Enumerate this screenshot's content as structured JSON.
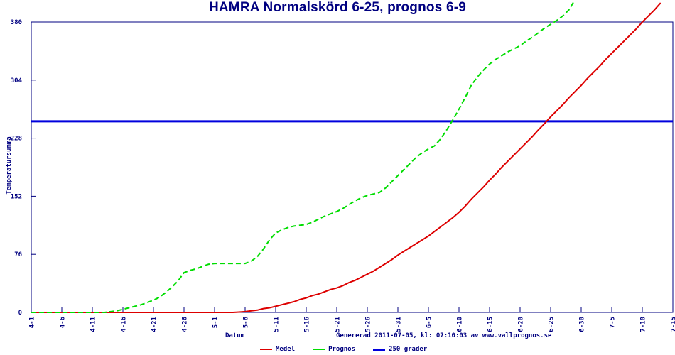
{
  "title": "HAMRA Normalskörd 6-25, prognos 6-9",
  "footer": {
    "generated": "Genererad 2011-07-05, kl: 07:10:03 av www.vallprognos.se"
  },
  "colors": {
    "title": "#000080",
    "axis": "#000080",
    "medel": "#dd0000",
    "prognos": "#00dd00",
    "grader_250": "#0000dd",
    "background": "#ffffff"
  },
  "chart_data": {
    "type": "line",
    "title": "HAMRA Normalskörd 6-25, prognos 6-9",
    "xlabel": "Datum",
    "ylabel": "Temperatursumma",
    "ylim": [
      0,
      380
    ],
    "grid": false,
    "legend_position": "bottom",
    "y_ticks": [
      0,
      76,
      152,
      228,
      304,
      380
    ],
    "x_ticks": [
      {
        "day": 0,
        "label": "4-1"
      },
      {
        "day": 5,
        "label": "4-6"
      },
      {
        "day": 10,
        "label": "4-11"
      },
      {
        "day": 15,
        "label": "4-16"
      },
      {
        "day": 20,
        "label": "4-21"
      },
      {
        "day": 25,
        "label": "4-26"
      },
      {
        "day": 30,
        "label": "5-1"
      },
      {
        "day": 35,
        "label": "5-6"
      },
      {
        "day": 40,
        "label": "5-11"
      },
      {
        "day": 45,
        "label": "5-16"
      },
      {
        "day": 50,
        "label": "5-21"
      },
      {
        "day": 55,
        "label": "5-26"
      },
      {
        "day": 60,
        "label": "5-31"
      },
      {
        "day": 65,
        "label": "6-5"
      },
      {
        "day": 70,
        "label": "6-10"
      },
      {
        "day": 75,
        "label": "6-15"
      },
      {
        "day": 80,
        "label": "6-20"
      },
      {
        "day": 85,
        "label": "6-25"
      },
      {
        "day": 90,
        "label": "6-30"
      },
      {
        "day": 95,
        "label": "7-5"
      },
      {
        "day": 100,
        "label": "7-10"
      },
      {
        "day": 105,
        "label": "7-15"
      }
    ],
    "series": [
      {
        "name": "250 grader",
        "color": "#0000dd",
        "style": "solid",
        "width": 3,
        "points": [
          [
            0,
            250
          ],
          [
            105,
            250
          ]
        ]
      },
      {
        "name": "Medel",
        "color": "#dd0000",
        "style": "solid",
        "width": 2,
        "points": [
          [
            0,
            0
          ],
          [
            10,
            0
          ],
          [
            20,
            0
          ],
          [
            25,
            0
          ],
          [
            30,
            0
          ],
          [
            33,
            0
          ],
          [
            34,
            0.5
          ],
          [
            35,
            1
          ],
          [
            36,
            2
          ],
          [
            37,
            3
          ],
          [
            38,
            5
          ],
          [
            39,
            6
          ],
          [
            40,
            8
          ],
          [
            41,
            10
          ],
          [
            42,
            12
          ],
          [
            43,
            14
          ],
          [
            44,
            17
          ],
          [
            45,
            19
          ],
          [
            46,
            22
          ],
          [
            47,
            24
          ],
          [
            48,
            27
          ],
          [
            49,
            30
          ],
          [
            50,
            32
          ],
          [
            51,
            35
          ],
          [
            52,
            39
          ],
          [
            53,
            42
          ],
          [
            54,
            46
          ],
          [
            55,
            50
          ],
          [
            56,
            54
          ],
          [
            57,
            59
          ],
          [
            58,
            64
          ],
          [
            59,
            69
          ],
          [
            60,
            75
          ],
          [
            61,
            80
          ],
          [
            62,
            85
          ],
          [
            63,
            90
          ],
          [
            64,
            95
          ],
          [
            65,
            100
          ],
          [
            66,
            106
          ],
          [
            67,
            112
          ],
          [
            68,
            118
          ],
          [
            69,
            124
          ],
          [
            70,
            131
          ],
          [
            71,
            139
          ],
          [
            72,
            148
          ],
          [
            73,
            156
          ],
          [
            74,
            164
          ],
          [
            75,
            173
          ],
          [
            76,
            181
          ],
          [
            77,
            190
          ],
          [
            78,
            198
          ],
          [
            79,
            206
          ],
          [
            80,
            214
          ],
          [
            81,
            222
          ],
          [
            82,
            230
          ],
          [
            83,
            239
          ],
          [
            84,
            247
          ],
          [
            85,
            256
          ],
          [
            86,
            264
          ],
          [
            87,
            272
          ],
          [
            88,
            281
          ],
          [
            89,
            289
          ],
          [
            90,
            297
          ],
          [
            91,
            306
          ],
          [
            92,
            314
          ],
          [
            93,
            322
          ],
          [
            94,
            331
          ],
          [
            95,
            339
          ],
          [
            96,
            347
          ],
          [
            97,
            355
          ],
          [
            98,
            363
          ],
          [
            99,
            371
          ],
          [
            100,
            380
          ],
          [
            101,
            388
          ],
          [
            102,
            396
          ],
          [
            103,
            405
          ]
        ]
      },
      {
        "name": "Prognos",
        "color": "#00dd00",
        "style": "dashed",
        "width": 2,
        "points": [
          [
            0,
            0
          ],
          [
            6,
            0
          ],
          [
            12,
            0
          ],
          [
            14,
            2
          ],
          [
            16,
            6
          ],
          [
            18,
            10
          ],
          [
            20,
            16
          ],
          [
            21,
            20
          ],
          [
            22,
            26
          ],
          [
            23,
            33
          ],
          [
            24,
            41
          ],
          [
            25,
            52
          ],
          [
            26,
            55
          ],
          [
            27,
            57
          ],
          [
            28,
            60
          ],
          [
            29,
            63
          ],
          [
            30,
            64
          ],
          [
            32,
            64
          ],
          [
            34,
            64
          ],
          [
            35,
            64
          ],
          [
            36,
            67
          ],
          [
            37,
            73
          ],
          [
            38,
            83
          ],
          [
            39,
            95
          ],
          [
            40,
            104
          ],
          [
            41,
            108
          ],
          [
            42,
            111
          ],
          [
            43,
            113
          ],
          [
            44,
            114
          ],
          [
            45,
            115
          ],
          [
            46,
            118
          ],
          [
            47,
            122
          ],
          [
            48,
            126
          ],
          [
            49,
            129
          ],
          [
            50,
            132
          ],
          [
            51,
            136
          ],
          [
            52,
            141
          ],
          [
            53,
            146
          ],
          [
            54,
            150
          ],
          [
            55,
            153
          ],
          [
            56,
            155
          ],
          [
            57,
            157
          ],
          [
            58,
            163
          ],
          [
            59,
            171
          ],
          [
            60,
            179
          ],
          [
            61,
            187
          ],
          [
            62,
            195
          ],
          [
            63,
            203
          ],
          [
            64,
            209
          ],
          [
            65,
            214
          ],
          [
            66,
            218
          ],
          [
            67,
            227
          ],
          [
            68,
            239
          ],
          [
            69,
            252
          ],
          [
            70,
            266
          ],
          [
            71,
            281
          ],
          [
            72,
            297
          ],
          [
            73,
            308
          ],
          [
            74,
            317
          ],
          [
            75,
            325
          ],
          [
            76,
            331
          ],
          [
            77,
            336
          ],
          [
            78,
            341
          ],
          [
            79,
            345
          ],
          [
            80,
            349
          ],
          [
            81,
            355
          ],
          [
            82,
            360
          ],
          [
            83,
            366
          ],
          [
            84,
            372
          ],
          [
            85,
            377
          ],
          [
            86,
            382
          ],
          [
            87,
            388
          ],
          [
            88,
            396
          ],
          [
            88.9,
            408
          ]
        ]
      }
    ],
    "legend_items": [
      {
        "label": "Medel",
        "color": "#dd0000",
        "dashed": false,
        "thickness": 2
      },
      {
        "label": "Prognos",
        "color": "#00dd00",
        "dashed": true,
        "thickness": 2
      },
      {
        "label": "250 grader",
        "color": "#0000dd",
        "dashed": false,
        "thickness": 3
      }
    ]
  }
}
